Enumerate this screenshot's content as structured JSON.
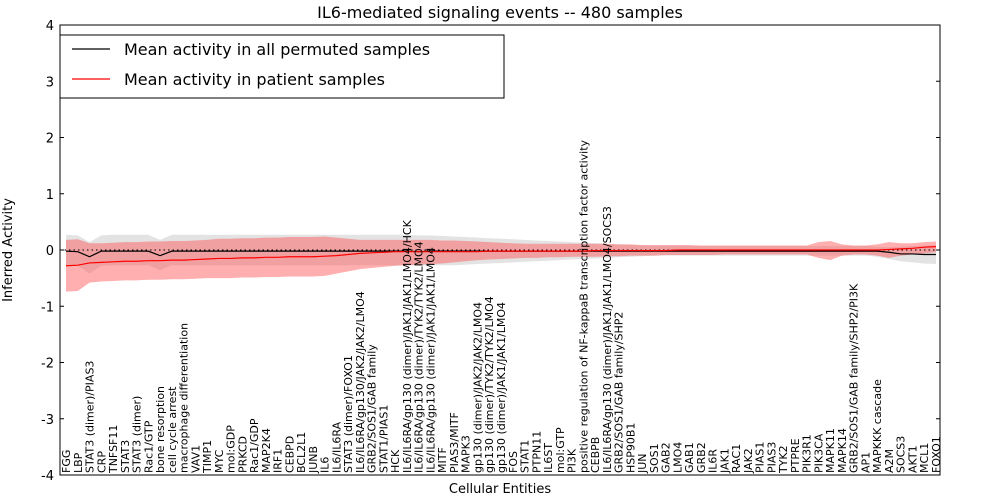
{
  "chart_data": {
    "type": "line",
    "title": "IL6-mediated signaling events -- 480 samples",
    "xlabel": "Cellular Entities",
    "ylabel": "Inferred Activity",
    "ylim": [
      -4,
      4
    ],
    "yticks": [
      -4,
      -3,
      -2,
      -1,
      0,
      1,
      2,
      3,
      4
    ],
    "legend": {
      "position": "top-left",
      "entries": [
        {
          "label": "Mean activity in all permuted samples",
          "color": "#000000"
        },
        {
          "label": "Mean activity in patient samples",
          "color": "#ff0000"
        }
      ]
    },
    "colors": {
      "permuted_line": "#000000",
      "permuted_band": "#b0b0b0",
      "patient_line": "#ff0000",
      "patient_band": "#ff4d4d",
      "zero_line": "#000000"
    },
    "categories": [
      "FGG",
      "LBP",
      "STAT3 (dimer)/PIAS3",
      "CRP",
      "TNFSF11",
      "STAT3",
      "STAT3 (dimer)",
      "Rac1/GTP",
      "bone resorption",
      "cell cycle arrest",
      "macrophage differentiation",
      "VAV1",
      "TIMP1",
      "MYC",
      "mol:GDP",
      "PRKCD",
      "Rac1/GDP",
      "MAP2K4",
      "IRF1",
      "CEBPD",
      "BCL2L1",
      "JUNB",
      "IL6",
      "IL6/IL6RA",
      "STAT3 (dimer)/FOXO1",
      "IL6/IL6RA/gp130/JAK2/JAK2/LMO4",
      "GRB2/SOS1/GAB family",
      "STAT1/PIAS1",
      "HCK",
      "IL6/IL6RA/gp130 (dimer)/JAK1/JAK1/LMO4/HCK",
      "IL6/IL6RA/gp130 (dimer)/TYK2/TYK2/LMO4",
      "IL6/IL6RA/gp130 (dimer)/JAK1/JAK1/LMO4",
      "MITF",
      "PIAS3/MITF",
      "MAPK3",
      "gp130 (dimer)/JAK2/JAK2/LMO4",
      "gp130 (dimer)/TYK2/TYK2/LMO4",
      "gp130 (dimer)/JAK1/JAK1/LMO4",
      "FOS",
      "STAT1",
      "PTPN11",
      "IL6ST",
      "mol:GTP",
      "PI3K",
      "positive regulation of NF-kappaB transcription factor activity",
      "CEBPB",
      "IL6/IL6RA/gp130 (dimer)/JAK1/JAK1/LMO4/SOCS3",
      "GRB2/SOS1/GAB family/SHP2",
      "HSP90B1",
      "JUN",
      "SOS1",
      "GAB2",
      "LMO4",
      "GAB1",
      "GRB2",
      "IL6R",
      "JAK1",
      "RAC1",
      "JAK2",
      "PIAS1",
      "PIAS3",
      "TYK2",
      "PTPRE",
      "PIK3R1",
      "PIK3CA",
      "MAPK11",
      "MAPK14",
      "GRB2/SOS1/GAB family/SHP2/PI3K",
      "AP1",
      "MAPKKK cascade",
      "A2M",
      "SOCS3",
      "AKT1",
      "MCL1",
      "FOXO1"
    ],
    "series": [
      {
        "name": "Mean activity in all permuted samples",
        "values": [
          -0.02,
          -0.03,
          -0.12,
          -0.02,
          -0.02,
          -0.02,
          -0.02,
          -0.02,
          -0.1,
          -0.02,
          -0.02,
          -0.02,
          -0.02,
          -0.02,
          -0.02,
          -0.02,
          -0.02,
          -0.02,
          -0.02,
          -0.02,
          -0.02,
          -0.02,
          -0.02,
          -0.02,
          -0.02,
          -0.02,
          -0.02,
          -0.02,
          -0.02,
          -0.02,
          -0.03,
          -0.02,
          -0.02,
          -0.02,
          -0.02,
          -0.02,
          -0.02,
          -0.02,
          -0.02,
          -0.02,
          -0.02,
          -0.02,
          -0.02,
          -0.02,
          -0.02,
          -0.02,
          -0.02,
          -0.02,
          -0.02,
          -0.02,
          -0.02,
          -0.02,
          -0.02,
          -0.02,
          -0.02,
          -0.02,
          -0.02,
          -0.02,
          -0.02,
          -0.02,
          -0.02,
          -0.02,
          -0.02,
          -0.02,
          -0.02,
          -0.02,
          -0.02,
          -0.02,
          -0.02,
          -0.02,
          -0.04,
          -0.07,
          -0.07,
          -0.08,
          -0.08
        ],
        "lower": [
          -0.27,
          -0.28,
          -0.42,
          -0.28,
          -0.27,
          -0.27,
          -0.27,
          -0.27,
          -0.36,
          -0.27,
          -0.27,
          -0.27,
          -0.27,
          -0.27,
          -0.27,
          -0.27,
          -0.27,
          -0.27,
          -0.27,
          -0.27,
          -0.27,
          -0.27,
          -0.27,
          -0.27,
          -0.27,
          -0.27,
          -0.27,
          -0.27,
          -0.27,
          -0.27,
          -0.28,
          -0.27,
          -0.27,
          -0.27,
          -0.26,
          -0.25,
          -0.24,
          -0.23,
          -0.22,
          -0.21,
          -0.2,
          -0.19,
          -0.18,
          -0.17,
          -0.16,
          -0.15,
          -0.14,
          -0.13,
          -0.12,
          -0.11,
          -0.1,
          -0.1,
          -0.1,
          -0.1,
          -0.1,
          -0.1,
          -0.1,
          -0.1,
          -0.1,
          -0.1,
          -0.1,
          -0.1,
          -0.1,
          -0.1,
          -0.1,
          -0.1,
          -0.1,
          -0.1,
          -0.1,
          -0.12,
          -0.16,
          -0.2,
          -0.22,
          -0.24,
          -0.25
        ],
        "upper": [
          0.27,
          0.26,
          0.14,
          0.26,
          0.27,
          0.27,
          0.27,
          0.27,
          0.18,
          0.27,
          0.27,
          0.27,
          0.27,
          0.27,
          0.27,
          0.27,
          0.27,
          0.27,
          0.27,
          0.27,
          0.27,
          0.27,
          0.27,
          0.27,
          0.27,
          0.27,
          0.27,
          0.27,
          0.27,
          0.27,
          0.26,
          0.26,
          0.25,
          0.24,
          0.23,
          0.22,
          0.21,
          0.2,
          0.19,
          0.18,
          0.17,
          0.16,
          0.15,
          0.14,
          0.13,
          0.12,
          0.11,
          0.1,
          0.09,
          0.08,
          0.07,
          0.07,
          0.07,
          0.07,
          0.07,
          0.07,
          0.07,
          0.07,
          0.07,
          0.07,
          0.07,
          0.07,
          0.07,
          0.07,
          0.07,
          0.07,
          0.07,
          0.07,
          0.07,
          0.06,
          0.05,
          0.06,
          0.07,
          0.08,
          0.09
        ]
      },
      {
        "name": "Mean activity in patient samples",
        "values": [
          -0.28,
          -0.27,
          -0.23,
          -0.22,
          -0.21,
          -0.2,
          -0.2,
          -0.19,
          -0.19,
          -0.18,
          -0.18,
          -0.17,
          -0.16,
          -0.15,
          -0.15,
          -0.14,
          -0.14,
          -0.13,
          -0.13,
          -0.12,
          -0.12,
          -0.12,
          -0.11,
          -0.1,
          -0.08,
          -0.06,
          -0.05,
          -0.04,
          -0.03,
          -0.03,
          -0.03,
          -0.03,
          -0.03,
          -0.03,
          -0.03,
          -0.03,
          -0.02,
          -0.02,
          -0.02,
          -0.02,
          -0.02,
          -0.02,
          -0.02,
          -0.02,
          -0.02,
          -0.01,
          -0.01,
          -0.01,
          -0.01,
          -0.01,
          -0.01,
          -0.01,
          0.0,
          0.0,
          0.0,
          0.0,
          0.0,
          0.0,
          0.0,
          0.0,
          0.0,
          0.0,
          0.0,
          0.0,
          0.0,
          0.0,
          0.0,
          0.0,
          0.0,
          0.0,
          0.01,
          0.02,
          0.03,
          0.05,
          0.06
        ],
        "lower": [
          -0.74,
          -0.73,
          -0.58,
          -0.56,
          -0.55,
          -0.54,
          -0.54,
          -0.53,
          -0.53,
          -0.52,
          -0.52,
          -0.51,
          -0.5,
          -0.5,
          -0.5,
          -0.49,
          -0.49,
          -0.48,
          -0.48,
          -0.47,
          -0.47,
          -0.47,
          -0.46,
          -0.42,
          -0.38,
          -0.34,
          -0.32,
          -0.3,
          -0.28,
          -0.27,
          -0.26,
          -0.25,
          -0.24,
          -0.22,
          -0.2,
          -0.18,
          -0.17,
          -0.16,
          -0.15,
          -0.14,
          -0.14,
          -0.13,
          -0.13,
          -0.12,
          -0.12,
          -0.12,
          -0.11,
          -0.11,
          -0.1,
          -0.1,
          -0.1,
          -0.09,
          -0.09,
          -0.09,
          -0.09,
          -0.09,
          -0.08,
          -0.08,
          -0.08,
          -0.08,
          -0.08,
          -0.08,
          -0.08,
          -0.08,
          -0.14,
          -0.18,
          -0.1,
          -0.08,
          -0.08,
          -0.1,
          -0.14,
          -0.1,
          -0.08,
          -0.06,
          -0.04
        ],
        "upper": [
          0.18,
          0.19,
          0.12,
          0.12,
          0.13,
          0.14,
          0.14,
          0.15,
          0.15,
          0.16,
          0.16,
          0.17,
          0.18,
          0.2,
          0.2,
          0.21,
          0.21,
          0.22,
          0.22,
          0.23,
          0.23,
          0.23,
          0.24,
          0.22,
          0.2,
          0.18,
          0.18,
          0.18,
          0.18,
          0.18,
          0.18,
          0.18,
          0.17,
          0.17,
          0.16,
          0.15,
          0.14,
          0.13,
          0.12,
          0.11,
          0.11,
          0.11,
          0.11,
          0.11,
          0.11,
          0.11,
          0.11,
          0.1,
          0.1,
          0.09,
          0.09,
          0.09,
          0.09,
          0.09,
          0.08,
          0.08,
          0.08,
          0.08,
          0.08,
          0.08,
          0.08,
          0.08,
          0.08,
          0.08,
          0.14,
          0.16,
          0.1,
          0.08,
          0.08,
          0.1,
          0.14,
          0.12,
          0.12,
          0.14,
          0.15
        ]
      }
    ]
  }
}
